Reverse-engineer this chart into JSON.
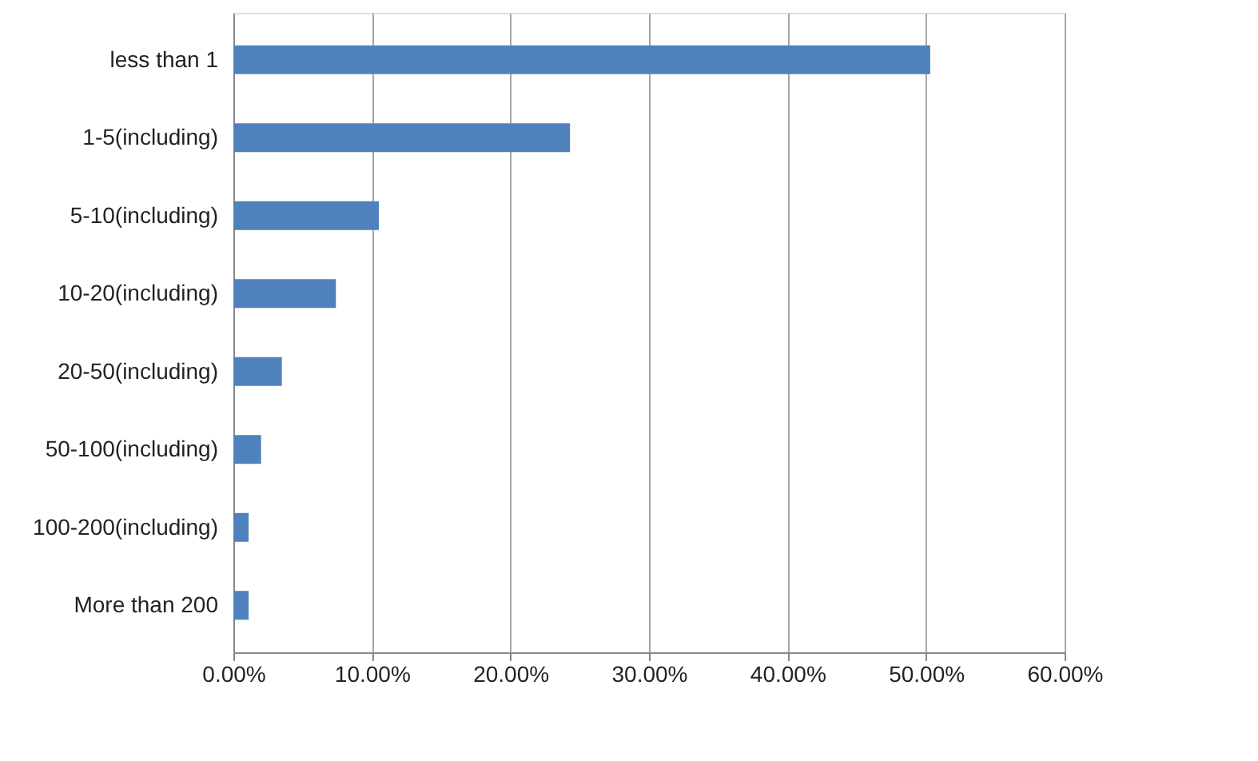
{
  "chart_data": {
    "type": "bar",
    "orientation": "horizontal",
    "categories": [
      "less than 1",
      "1-5(including)",
      "5-10(including)",
      "10-20(including)",
      "20-50(including)",
      "50-100(including)",
      "100-200(including)",
      "More than 200"
    ],
    "values": [
      50.3,
      24.3,
      10.5,
      7.4,
      3.5,
      2.0,
      1.1,
      1.1
    ],
    "color": "#4f81bd",
    "xlim": [
      0,
      60
    ],
    "xticks": [
      {
        "value": 0,
        "label": "0.00%"
      },
      {
        "value": 10,
        "label": "10.00%"
      },
      {
        "value": 20,
        "label": "20.00%"
      },
      {
        "value": 30,
        "label": "30.00%"
      },
      {
        "value": 40,
        "label": "40.00%"
      },
      {
        "value": 50,
        "label": "50.00%"
      },
      {
        "value": 60,
        "label": "60.00%"
      }
    ],
    "grid": "x"
  }
}
